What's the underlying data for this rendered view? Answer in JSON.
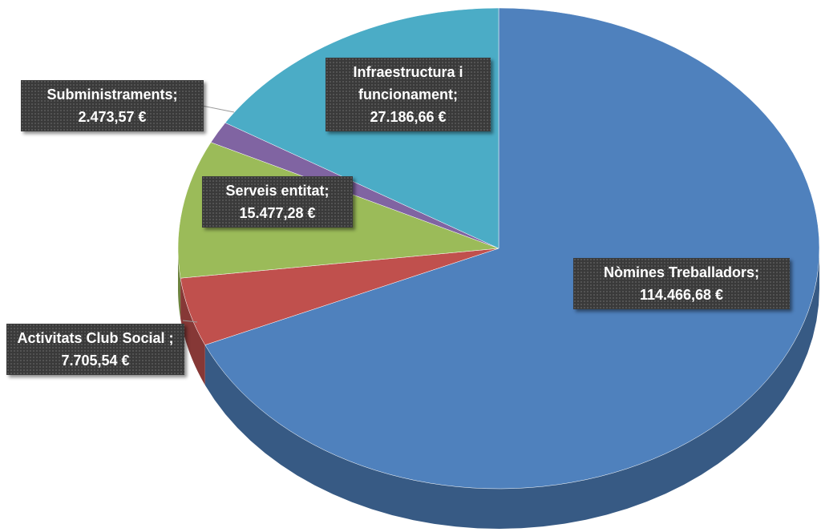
{
  "chart_data": {
    "type": "pie3d",
    "categories": [
      "Nòmines Treballadors;",
      "Activitats Club Social ;",
      "Serveis entitat;",
      "Subministraments;",
      "Infraestructura i funcionament;"
    ],
    "values": [
      114466.68,
      7705.54,
      15477.28,
      2473.57,
      27186.66
    ],
    "value_labels": [
      "114.466,68 €",
      "7.705,54 €",
      "15.477,28 €",
      "2.473,57 €",
      "27.186,66 €"
    ],
    "colors": [
      "#4f81bd",
      "#c0504d",
      "#9bbb59",
      "#8064a2",
      "#4bacc6"
    ]
  }
}
